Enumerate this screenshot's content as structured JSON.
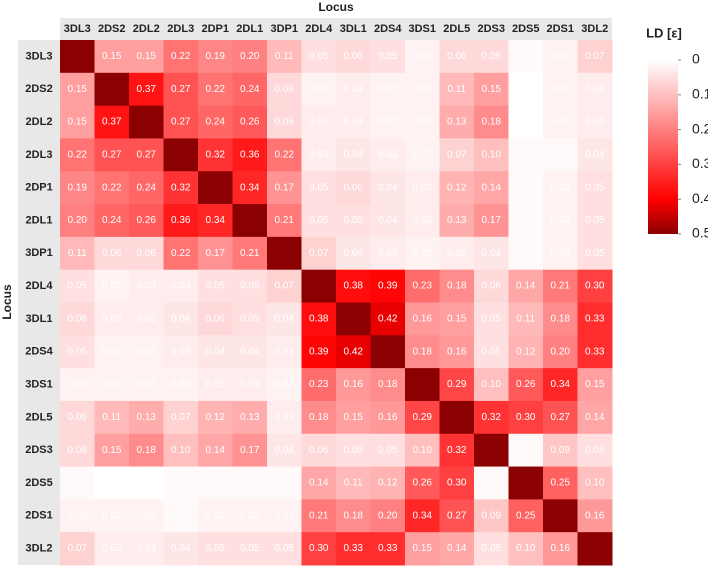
{
  "chart_data": {
    "type": "heatmap",
    "title": "Locus",
    "y_label": "Locus",
    "colorbar_label": "LD [ε]",
    "categories": [
      "3DL3",
      "2DS2",
      "2DL2",
      "2DL3",
      "2DP1",
      "2DL1",
      "3DP1",
      "2DL4",
      "3DL1",
      "2DS4",
      "3DS1",
      "2DL5",
      "2DS3",
      "2DS5",
      "2DS1",
      "3DL2"
    ],
    "values": [
      [
        null,
        0.15,
        0.15,
        0.22,
        0.19,
        0.2,
        0.11,
        0.05,
        0.06,
        0.05,
        0.02,
        0.06,
        0.06,
        0.01,
        0.02,
        0.07
      ],
      [
        0.15,
        null,
        0.37,
        0.27,
        0.22,
        0.24,
        0.06,
        0.02,
        0.03,
        0.02,
        0.02,
        0.11,
        0.15,
        0.0,
        0.02,
        0.03
      ],
      [
        0.15,
        0.37,
        null,
        0.27,
        0.24,
        0.26,
        0.06,
        0.03,
        0.03,
        0.02,
        0.02,
        0.13,
        0.18,
        0.0,
        0.02,
        0.03
      ],
      [
        0.22,
        0.27,
        0.27,
        null,
        0.32,
        0.36,
        0.22,
        0.03,
        0.04,
        0.03,
        0.02,
        0.07,
        0.1,
        0.01,
        0.01,
        0.04
      ],
      [
        0.19,
        0.22,
        0.24,
        0.32,
        null,
        0.34,
        0.17,
        0.05,
        0.06,
        0.04,
        0.03,
        0.12,
        0.14,
        0.01,
        0.02,
        0.05
      ],
      [
        0.2,
        0.24,
        0.26,
        0.36,
        0.34,
        null,
        0.21,
        0.05,
        0.05,
        0.04,
        0.03,
        0.13,
        0.17,
        0.01,
        0.02,
        0.05
      ],
      [
        0.11,
        0.06,
        0.06,
        0.22,
        0.17,
        0.21,
        null,
        0.07,
        0.04,
        0.03,
        0.02,
        0.03,
        0.04,
        0.01,
        0.02,
        0.05
      ],
      [
        0.05,
        0.02,
        0.03,
        0.03,
        0.05,
        0.05,
        0.07,
        null,
        0.38,
        0.39,
        0.23,
        0.18,
        0.06,
        0.14,
        0.21,
        0.3
      ],
      [
        0.06,
        0.03,
        0.03,
        0.04,
        0.06,
        0.05,
        0.04,
        0.38,
        null,
        0.42,
        0.16,
        0.15,
        0.05,
        0.11,
        0.18,
        0.33
      ],
      [
        0.05,
        0.02,
        0.02,
        0.03,
        0.04,
        0.04,
        0.03,
        0.39,
        0.42,
        null,
        0.18,
        0.16,
        0.05,
        0.12,
        0.2,
        0.33
      ],
      [
        0.02,
        0.02,
        0.02,
        0.02,
        0.03,
        0.03,
        0.02,
        0.23,
        0.16,
        0.18,
        null,
        0.29,
        0.1,
        0.26,
        0.34,
        0.15
      ],
      [
        0.06,
        0.11,
        0.13,
        0.07,
        0.12,
        0.13,
        0.03,
        0.18,
        0.15,
        0.16,
        0.29,
        null,
        0.32,
        0.3,
        0.27,
        0.14
      ],
      [
        0.06,
        0.15,
        0.18,
        0.1,
        0.14,
        0.17,
        0.04,
        0.06,
        0.05,
        0.05,
        0.1,
        0.32,
        null,
        0.01,
        0.09,
        0.05
      ],
      [
        0.01,
        0.0,
        0.0,
        0.01,
        0.01,
        0.01,
        0.01,
        0.14,
        0.11,
        0.12,
        0.26,
        0.3,
        0.01,
        null,
        0.25,
        0.1
      ],
      [
        0.02,
        0.02,
        0.02,
        0.01,
        0.02,
        0.02,
        0.02,
        0.21,
        0.18,
        0.2,
        0.34,
        0.27,
        0.09,
        0.25,
        null,
        0.16
      ],
      [
        0.07,
        0.03,
        0.03,
        0.04,
        0.05,
        0.05,
        0.05,
        0.3,
        0.33,
        0.33,
        0.15,
        0.14,
        0.05,
        0.1,
        0.16,
        null
      ]
    ],
    "value_labels": [
      [
        null,
        "0.15",
        "0.15",
        "0.22",
        "0.19",
        "0.20",
        "0.11",
        "0.05",
        "0.06",
        "0.05",
        "0.02",
        "0.06",
        "0.06",
        "0.01",
        "0.02",
        "0.07"
      ],
      [
        "0.15",
        null,
        "0.37",
        "0.27",
        "0.22",
        "0.24",
        "0.06",
        "0.02",
        "0.03",
        "0.02",
        "0.02",
        "0.11",
        "0.15",
        "0.00",
        "0.02",
        "0.03"
      ],
      [
        "0.15",
        "0.37",
        null,
        "0.27",
        "0.24",
        "0.26",
        "0.06",
        "0.03",
        "0.03",
        "0.02",
        "0.02",
        "0.13",
        "0.18",
        "0.00",
        "0.02",
        "0.03"
      ],
      [
        "0.22",
        "0.27",
        "0.27",
        null,
        "0.32",
        "0.36",
        "0.22",
        "0.03",
        "0.04",
        "0.03",
        "0.02",
        "0.07",
        "0.10",
        "0.01",
        "0.01",
        "0.04"
      ],
      [
        "0.19",
        "0.22",
        "0.24",
        "0.32",
        null,
        "0.34",
        "0.17",
        "0.05",
        "0.06",
        "0.04",
        "0.03",
        "0.12",
        "0.14",
        "0.01",
        "0.02",
        "0.05"
      ],
      [
        "0.20",
        "0.24",
        "0.26",
        "0.36",
        "0.34",
        null,
        "0.21",
        "0.05",
        "0.05",
        "0.04",
        "0.03",
        "0.13",
        "0.17",
        "0.01",
        "0.02",
        "0.05"
      ],
      [
        "0.11",
        "0.06",
        "0.06",
        "0.22",
        "0.17",
        "0.21",
        null,
        "0.07",
        "0.04",
        "0.03",
        "0.02",
        "0.03",
        "0.04",
        "0.01",
        "0.02",
        "0.05"
      ],
      [
        "0.05",
        "0.02",
        "0.03",
        "0.03",
        "0.05",
        "0.05",
        "0.07",
        null,
        "0.38",
        "0.39",
        "0.23",
        "0.18",
        "0.06",
        "0.14",
        "0.21",
        "0.30"
      ],
      [
        "0.06",
        "0.03",
        "0.03",
        "0.04",
        "0.06",
        "0.05",
        "0.04",
        "0.38",
        null,
        "0.42",
        "0.16",
        "0.15",
        "0.05",
        "0.11",
        "0.18",
        "0.33"
      ],
      [
        "0.05",
        "0.02",
        "0.02",
        "0.03",
        "0.04",
        "0.04",
        "0.03",
        "0.39",
        "0.42",
        null,
        "0.18",
        "0.16",
        "0.05",
        "0.12",
        "0.20",
        "0.33"
      ],
      [
        "0.02",
        "0.02",
        "0.02",
        "0.02",
        "0.03",
        "0.03",
        "0.02",
        "0.23",
        "0.16",
        "0.18",
        null,
        "0.29",
        "0.10",
        "0.26",
        "0.34",
        "0.15"
      ],
      [
        "0.06",
        "0.11",
        "0.13",
        "0.07",
        "0.12",
        "0.13",
        "0.03",
        "0.18",
        "0.15",
        "0.16",
        "0.29",
        null,
        "0.32",
        "0.30",
        "0.27",
        "0.14"
      ],
      [
        "0.06",
        "0.15",
        "0.18",
        "0.10",
        "0.14",
        "0.17",
        "0.04",
        "0.06",
        "0.05",
        "0.05",
        "0.10",
        "0.32",
        null,
        "0.01",
        "0.09",
        "0.05"
      ],
      [
        "0.01",
        "0.00",
        "0.00",
        "0.01",
        "0.01",
        "0.01",
        "0.01",
        "0.14",
        "0.11",
        "0.12",
        "0.26",
        "0.30",
        "0.01",
        null,
        "0.25",
        "0.10"
      ],
      [
        "0.02",
        "0.02",
        "0.02",
        "0.01",
        "0.02",
        "0.02",
        "0.02",
        "0.21",
        "0.18",
        "0.20",
        "0.34",
        "0.27",
        "0.09",
        "0.25",
        null,
        "0.16"
      ],
      [
        "0.07",
        "0.03",
        "0.03",
        "0.04",
        "0.05",
        "0.05",
        "0.05",
        "0.30",
        "0.33",
        "0.33",
        "0.15",
        "0.14",
        "0.05",
        "0.10",
        "0.16",
        null
      ]
    ],
    "clim": [
      0,
      0.5
    ],
    "cticks": [
      0,
      0.1,
      0.2,
      0.3,
      0.4,
      0.5
    ],
    "colorscale": [
      [
        0,
        "#ffffff"
      ],
      [
        0.4,
        "#ff0000"
      ],
      [
        0.5,
        "#8b0000"
      ]
    ]
  }
}
